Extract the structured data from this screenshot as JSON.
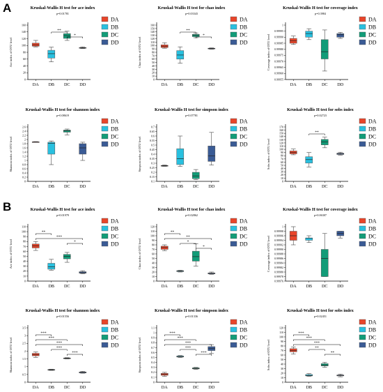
{
  "panels": [
    {
      "letter": "A"
    },
    {
      "letter": "B"
    }
  ],
  "colors": {
    "DA": "#e8452a",
    "DB": "#29c0df",
    "DC": "#129c78",
    "DD": "#3a5b95"
  },
  "chart_data": [
    {
      "panel": "A",
      "type": "box",
      "title": "Kruskal-Wallis H test for ace index",
      "subtitle": "p=0.01781",
      "ylabel": "Ace index of OTU level",
      "categories": [
        "DA",
        "DB",
        "DC",
        "DD"
      ],
      "yticks": [
        "0",
        "20",
        "40",
        "60",
        "80",
        "100",
        "120",
        "140",
        "160"
      ],
      "ylim": [
        0,
        160
      ],
      "series": [
        {
          "name": "DA",
          "min": 96,
          "q1": 98,
          "median": 102,
          "q3": 107,
          "max": 115
        },
        {
          "name": "DB",
          "min": 52,
          "q1": 63,
          "median": 76,
          "q3": 86,
          "max": 95
        },
        {
          "name": "DC",
          "min": 115,
          "q1": 121,
          "median": 129,
          "q3": 135,
          "max": 142
        },
        {
          "name": "DD",
          "min": 91,
          "q1": 92,
          "median": 93,
          "q3": 94,
          "max": 96
        }
      ],
      "significance": [
        {
          "from": "DB",
          "to": "DC",
          "label": "**"
        },
        {
          "from": "DC",
          "to": "DD",
          "label": "*"
        }
      ],
      "legend": [
        "DA",
        "DB",
        "DC",
        "DD"
      ]
    },
    {
      "panel": "A",
      "type": "box",
      "title": "Kruskal-Wallis H test for chao index",
      "subtitle": "p=0.03343",
      "ylabel": "Chao index of OTU level",
      "categories": [
        "DA",
        "DB",
        "DC",
        "DD"
      ],
      "yticks": [
        "0",
        "10",
        "20",
        "30",
        "40",
        "50",
        "60",
        "70",
        "80",
        "90",
        "100",
        "110",
        "120",
        "130",
        "140",
        "150",
        "160"
      ],
      "ylim": [
        0,
        160
      ],
      "series": [
        {
          "name": "DA",
          "min": 92,
          "q1": 94,
          "median": 98,
          "q3": 102,
          "max": 108
        },
        {
          "name": "DB",
          "min": 48,
          "q1": 60,
          "median": 72,
          "q3": 85,
          "max": 96
        },
        {
          "name": "DC",
          "min": 123,
          "q1": 126,
          "median": 130,
          "q3": 133,
          "max": 137
        },
        {
          "name": "DD",
          "min": 89,
          "q1": 90,
          "median": 91,
          "q3": 92,
          "max": 93
        }
      ],
      "significance": [
        {
          "from": "DB",
          "to": "DC",
          "label": "**"
        },
        {
          "from": "DC",
          "to": "DD",
          "label": "*"
        }
      ],
      "legend": [
        "DA",
        "DB",
        "DC",
        "DD"
      ]
    },
    {
      "panel": "A",
      "type": "box",
      "title": "Kruskal-Wallis H test for coverage index",
      "subtitle": "p=0.3984",
      "ylabel": "Coverage index of OTU level",
      "categories": [
        "DA",
        "DB",
        "DC",
        "DD"
      ],
      "yticks": [
        "0.99955",
        "0.99960",
        "0.99965",
        "0.99970",
        "0.99975",
        "0.99980",
        "0.99985",
        "0.99990",
        "0.99995",
        "1"
      ],
      "ylim": [
        0.99955,
        1.0
      ],
      "series": [
        {
          "name": "DA",
          "min": 0.99984,
          "q1": 0.99985,
          "median": 0.99987,
          "q3": 0.99989,
          "max": 0.99991
        },
        {
          "name": "DB",
          "min": 0.99988,
          "q1": 0.9999,
          "median": 0.99993,
          "q3": 0.99995,
          "max": 0.99997
        },
        {
          "name": "DC",
          "min": 0.99962,
          "q1": 0.99972,
          "median": 0.99978,
          "q3": 0.99988,
          "max": 0.99996
        },
        {
          "name": "DD",
          "min": 0.99989,
          "q1": 0.9999,
          "median": 0.99992,
          "q3": 0.99993,
          "max": 0.99994
        }
      ],
      "significance": [],
      "legend": [
        "DA",
        "DB",
        "DC",
        "DD"
      ]
    },
    {
      "panel": "A",
      "type": "box",
      "title": "Kruskal-Wallis H test for shannon index",
      "subtitle": "p=0.08619",
      "ylabel": "Shannon index of OTU level",
      "categories": [
        "DA",
        "DB",
        "DC",
        "DD"
      ],
      "yticks": [
        "0",
        "0.2",
        "0.4",
        "0.6",
        "0.8",
        "1",
        "1.2",
        "1.4",
        "1.6",
        "1.8",
        "2",
        "2.2",
        "2.4",
        "2.6"
      ],
      "ylim": [
        0,
        2.6
      ],
      "series": [
        {
          "name": "DA",
          "min": 1.86,
          "q1": 1.87,
          "median": 1.88,
          "q3": 1.89,
          "max": 1.9
        },
        {
          "name": "DB",
          "min": 0.8,
          "q1": 1.3,
          "median": 1.82,
          "q3": 1.87,
          "max": 1.93
        },
        {
          "name": "DC",
          "min": 2.22,
          "q1": 2.35,
          "median": 2.42,
          "q3": 2.45,
          "max": 2.5
        },
        {
          "name": "DD",
          "min": 1.0,
          "q1": 1.3,
          "median": 1.6,
          "q3": 1.8,
          "max": 1.87
        }
      ],
      "significance": [],
      "legend": [
        "DA",
        "DB",
        "DC",
        "DD"
      ]
    },
    {
      "panel": "A",
      "type": "box",
      "title": "Kruskal-Wallis H test for simpson index",
      "subtitle": "p=0.07781",
      "ylabel": "Simpson index of OTU level",
      "categories": [
        "DA",
        "DB",
        "DC",
        "DD"
      ],
      "yticks": [
        "0.1",
        "0.15",
        "0.2",
        "0.25",
        "0.3",
        "0.35",
        "0.4",
        "0.45",
        "0.5",
        "0.55",
        "0.6",
        "0.65",
        "0.7"
      ],
      "ylim": [
        0.1,
        0.7
      ],
      "series": [
        {
          "name": "DA",
          "min": 0.265,
          "q1": 0.27,
          "median": 0.272,
          "q3": 0.275,
          "max": 0.28
        },
        {
          "name": "DB",
          "min": 0.265,
          "q1": 0.285,
          "median": 0.35,
          "q3": 0.46,
          "max": 0.6
        },
        {
          "name": "DC",
          "min": 0.12,
          "q1": 0.13,
          "median": 0.16,
          "q3": 0.2,
          "max": 0.23
        },
        {
          "name": "DD",
          "min": 0.28,
          "q1": 0.32,
          "median": 0.38,
          "q3": 0.49,
          "max": 0.64
        }
      ],
      "significance": [],
      "legend": [
        "DA",
        "DB",
        "DC",
        "DD"
      ]
    },
    {
      "panel": "A",
      "type": "box",
      "title": "Kruskal-Wallis H test for sobs index",
      "subtitle": "p=0.02723",
      "ylabel": "Sobs index of OTU level",
      "categories": [
        "DA",
        "DB",
        "DC",
        "DD"
      ],
      "yticks": [
        "0",
        "10",
        "20",
        "30",
        "40",
        "50",
        "60",
        "70",
        "80",
        "90",
        "100",
        "110",
        "120",
        "130",
        "140",
        "150",
        "160",
        "170"
      ],
      "ylim": [
        0,
        170
      ],
      "series": [
        {
          "name": "DA",
          "min": 83,
          "q1": 86,
          "median": 90,
          "q3": 95,
          "max": 101
        },
        {
          "name": "DB",
          "min": 45,
          "q1": 57,
          "median": 68,
          "q3": 77,
          "max": 90
        },
        {
          "name": "DC",
          "min": 105,
          "q1": 114,
          "median": 123,
          "q3": 131,
          "max": 138
        },
        {
          "name": "DD",
          "min": 82,
          "q1": 84,
          "median": 86,
          "q3": 88,
          "max": 91
        }
      ],
      "significance": [
        {
          "from": "DB",
          "to": "DC",
          "label": "**"
        }
      ],
      "legend": [
        "DA",
        "DB",
        "DC",
        "DD"
      ]
    },
    {
      "panel": "B",
      "type": "box",
      "title": "Kruskal-Wallis H test for ace index",
      "subtitle": "p=0.01979",
      "ylabel": "Ace index of OTU level",
      "categories": [
        "DA",
        "DB",
        "DC",
        "DD"
      ],
      "yticks": [
        "0",
        "10",
        "20",
        "30",
        "40",
        "50",
        "60",
        "70",
        "80",
        "90",
        "100",
        "110"
      ],
      "ylim": [
        0,
        110
      ],
      "series": [
        {
          "name": "DA",
          "min": 62,
          "q1": 67,
          "median": 71,
          "q3": 75,
          "max": 80
        },
        {
          "name": "DB",
          "min": 22,
          "q1": 24,
          "median": 29,
          "q3": 36,
          "max": 44
        },
        {
          "name": "DC",
          "min": 38,
          "q1": 45,
          "median": 50,
          "q3": 54,
          "max": 58
        },
        {
          "name": "DD",
          "min": 15,
          "q1": 16,
          "median": 17,
          "q3": 19,
          "max": 21
        }
      ],
      "significance": [
        {
          "from": "DA",
          "to": "DB",
          "label": "**"
        },
        {
          "from": "DA",
          "to": "DD",
          "label": "***"
        },
        {
          "from": "DC",
          "to": "DD",
          "label": "*"
        }
      ],
      "legend": [
        "DA",
        "DB",
        "DC",
        "DD"
      ]
    },
    {
      "panel": "B",
      "type": "box",
      "title": "Kruskal-Wallis H test for chao index",
      "subtitle": "p=0.02862",
      "ylabel": "Chao index of OTU level",
      "categories": [
        "DA",
        "DB",
        "DC",
        "DD"
      ],
      "yticks": [
        "0",
        "10",
        "20",
        "30",
        "40",
        "50",
        "60",
        "70",
        "80",
        "90",
        "100",
        "110",
        "120"
      ],
      "ylim": [
        0,
        120
      ],
      "series": [
        {
          "name": "DA",
          "min": 67,
          "q1": 70,
          "median": 74,
          "q3": 77,
          "max": 80
        },
        {
          "name": "DB",
          "min": 20,
          "q1": 21,
          "median": 22,
          "q3": 23,
          "max": 24
        },
        {
          "name": "DC",
          "min": 33,
          "q1": 44,
          "median": 54,
          "q3": 66,
          "max": 82
        },
        {
          "name": "DD",
          "min": 15,
          "q1": 16,
          "median": 17,
          "q3": 18,
          "max": 20
        }
      ],
      "significance": [
        {
          "from": "DA",
          "to": "DB",
          "label": "**"
        },
        {
          "from": "DA",
          "to": "DD",
          "label": "**"
        },
        {
          "from": "DB",
          "to": "DC",
          "label": "*"
        },
        {
          "from": "DC",
          "to": "DD",
          "label": "*"
        }
      ],
      "legend": [
        "DA",
        "DB",
        "DC",
        "DD"
      ]
    },
    {
      "panel": "B",
      "type": "box",
      "title": "Kruskal-Wallis H test for coverage index",
      "subtitle": "p=0.06307",
      "ylabel": "Coverage index of OTU level",
      "categories": [
        "DA",
        "DB",
        "DC",
        "DD"
      ],
      "yticks": [
        "0.99976",
        "0.99978",
        "0.99980",
        "0.99982",
        "0.99984",
        "0.99986",
        "0.99988",
        "0.99990",
        "0.99992",
        "0.99994",
        "0.99996",
        "0.99998",
        "1"
      ],
      "ylim": [
        0.99976,
        1.0
      ],
      "series": [
        {
          "name": "DA",
          "min": 0.99992,
          "q1": 0.99994,
          "median": 0.99996,
          "q3": 0.99998,
          "max": 1.0
        },
        {
          "name": "DB",
          "min": 0.99993,
          "q1": 0.99994,
          "median": 0.99995,
          "q3": 0.99995,
          "max": 0.99996
        },
        {
          "name": "DC",
          "min": 0.99978,
          "q1": 0.99978,
          "median": 0.99986,
          "q3": 0.9999,
          "max": 0.99997
        },
        {
          "name": "DD",
          "min": 0.99995,
          "q1": 0.99996,
          "median": 0.99997,
          "q3": 0.99998,
          "max": 0.99998
        }
      ],
      "significance": [],
      "legend": [
        "DA",
        "DB",
        "DC",
        "DD"
      ]
    },
    {
      "panel": "B",
      "type": "box",
      "title": "Kruskal-Wallis H test for shannon index",
      "subtitle": "p=0.01556",
      "ylabel": "Shannon index of OTU level",
      "categories": [
        "DA",
        "DB",
        "DC",
        "DD"
      ],
      "yticks": [
        "0",
        "0.5",
        "1",
        "1.5",
        "2",
        "2.5",
        "3",
        "3.5"
      ],
      "ylim": [
        0,
        3.5
      ],
      "series": [
        {
          "name": "DA",
          "min": 1.6,
          "q1": 1.7,
          "median": 1.78,
          "q3": 1.86,
          "max": 1.95
        },
        {
          "name": "DB",
          "min": 0.76,
          "q1": 0.78,
          "median": 0.8,
          "q3": 0.82,
          "max": 0.84
        },
        {
          "name": "DC",
          "min": 1.5,
          "q1": 1.52,
          "median": 1.54,
          "q3": 1.56,
          "max": 1.58
        },
        {
          "name": "DD",
          "min": 0.58,
          "q1": 0.6,
          "median": 0.63,
          "q3": 0.66,
          "max": 0.7
        }
      ],
      "significance": [
        {
          "from": "DA",
          "to": "DB",
          "label": "***"
        },
        {
          "from": "DA",
          "to": "DC",
          "label": "***"
        },
        {
          "from": "DA",
          "to": "DD",
          "label": "***"
        },
        {
          "from": "DB",
          "to": "DC",
          "label": "***"
        },
        {
          "from": "DC",
          "to": "DD",
          "label": "***"
        }
      ],
      "legend": [
        "DA",
        "DB",
        "DC",
        "DD"
      ]
    },
    {
      "panel": "B",
      "type": "box",
      "title": "Kruskal-Wallis H test for simpson index",
      "subtitle": "p=0.01336",
      "ylabel": "Simpson index of OTU level",
      "categories": [
        "DA",
        "DB",
        "DC",
        "DD"
      ],
      "yticks": [
        "0",
        "0.1",
        "0.2",
        "0.3",
        "0.4",
        "0.5",
        "0.6",
        "0.7",
        "0.8",
        "0.9",
        "1",
        "1.1"
      ],
      "ylim": [
        0,
        1.1
      ],
      "series": [
        {
          "name": "DA",
          "min": 0.12,
          "q1": 0.14,
          "median": 0.16,
          "q3": 0.18,
          "max": 0.2
        },
        {
          "name": "DB",
          "min": 0.5,
          "q1": 0.51,
          "median": 0.52,
          "q3": 0.53,
          "max": 0.54
        },
        {
          "name": "DC",
          "min": 0.26,
          "q1": 0.27,
          "median": 0.28,
          "q3": 0.29,
          "max": 0.3
        },
        {
          "name": "DD",
          "min": 0.58,
          "q1": 0.64,
          "median": 0.68,
          "q3": 0.72,
          "max": 0.76
        }
      ],
      "significance": [
        {
          "from": "DA",
          "to": "DB",
          "label": "***"
        },
        {
          "from": "DA",
          "to": "DC",
          "label": "***"
        },
        {
          "from": "DA",
          "to": "DD",
          "label": "***"
        },
        {
          "from": "DB",
          "to": "DC",
          "label": "***"
        },
        {
          "from": "DC",
          "to": "DD",
          "label": "***"
        }
      ],
      "legend": [
        "DA",
        "DB",
        "DC",
        "DD"
      ]
    },
    {
      "panel": "B",
      "type": "box",
      "title": "Kruskal-Wallis H test for sobs index",
      "subtitle": "p=0.02451",
      "ylabel": "Sobs index of OTU level",
      "categories": [
        "DA",
        "DB",
        "DC",
        "DD"
      ],
      "yticks": [
        "0",
        "10",
        "20",
        "30",
        "40",
        "50",
        "60",
        "70",
        "80",
        "90",
        "100",
        "110",
        "120"
      ],
      "ylim": [
        0,
        120
      ],
      "series": [
        {
          "name": "DA",
          "min": 62,
          "q1": 67,
          "median": 70,
          "q3": 74,
          "max": 78
        },
        {
          "name": "DB",
          "min": 13,
          "q1": 14,
          "median": 15,
          "q3": 17,
          "max": 19
        },
        {
          "name": "DC",
          "min": 33,
          "q1": 36,
          "median": 38,
          "q3": 41,
          "max": 44
        },
        {
          "name": "DD",
          "min": 12,
          "q1": 14,
          "median": 15,
          "q3": 16,
          "max": 18
        }
      ],
      "significance": [
        {
          "from": "DA",
          "to": "DB",
          "label": "***"
        },
        {
          "from": "DA",
          "to": "DC",
          "label": "***"
        },
        {
          "from": "DA",
          "to": "DD",
          "label": "***"
        },
        {
          "from": "DB",
          "to": "DC",
          "label": "**"
        },
        {
          "from": "DC",
          "to": "DD",
          "label": "**"
        }
      ],
      "legend": [
        "DA",
        "DB",
        "DC",
        "DD"
      ]
    }
  ]
}
